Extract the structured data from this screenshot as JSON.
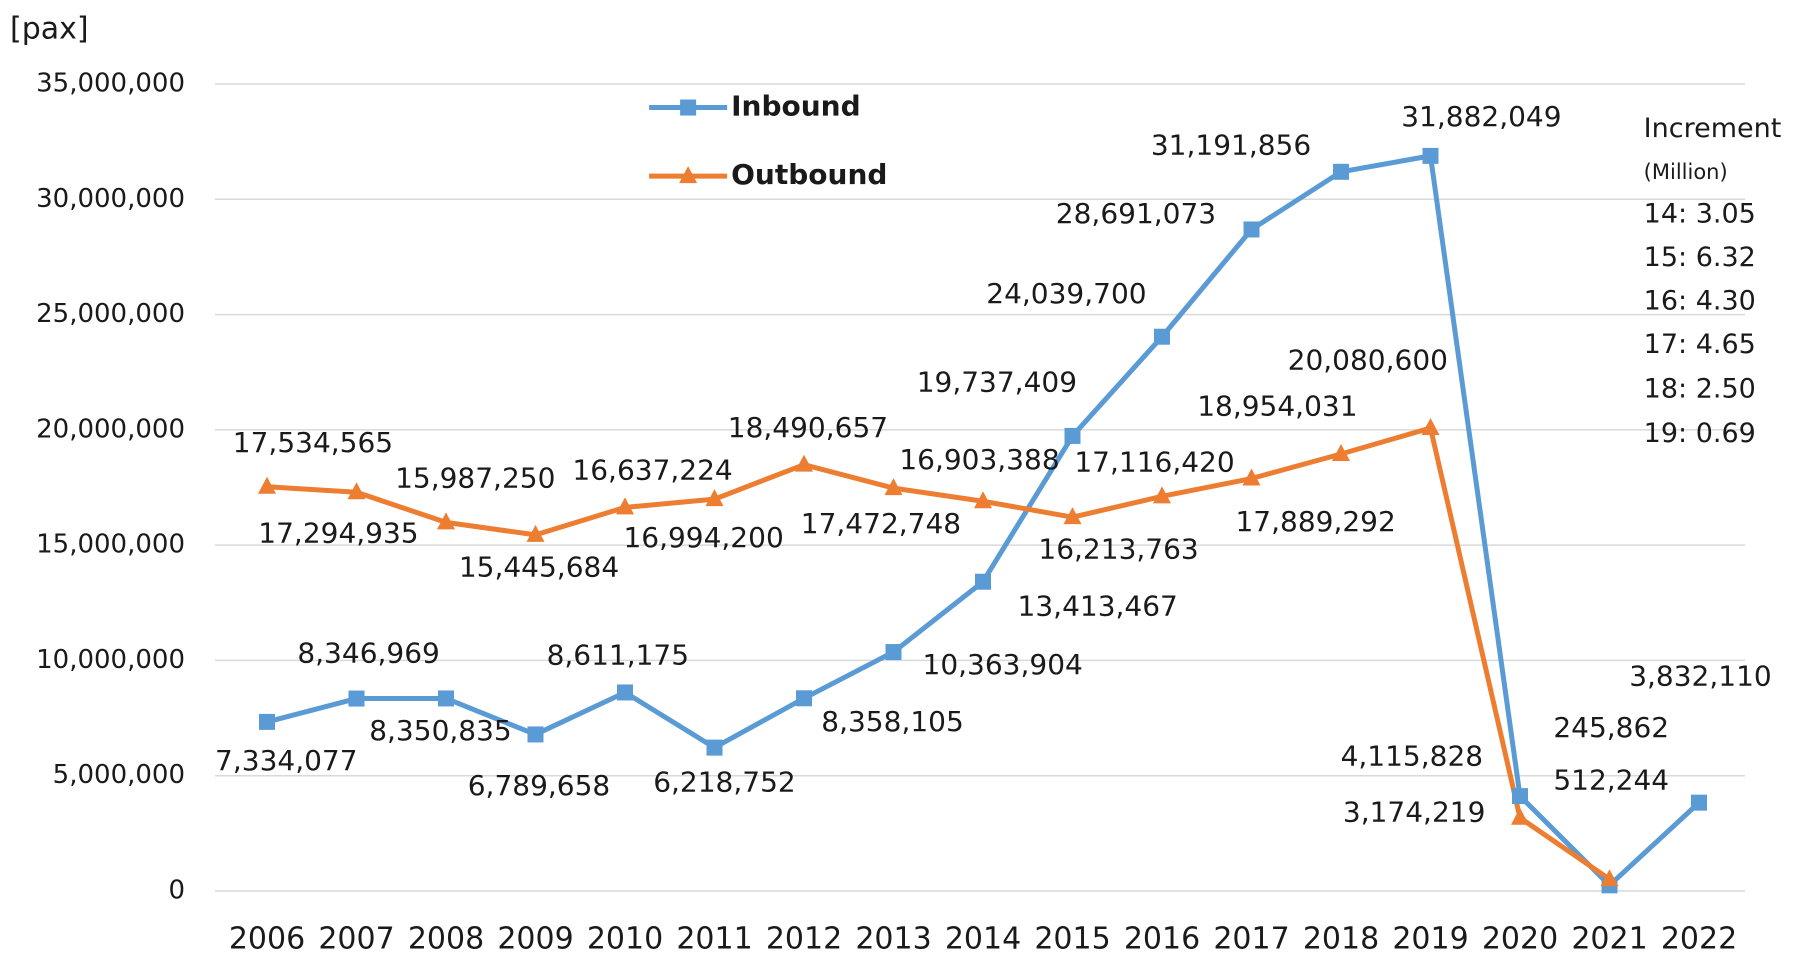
{
  "chart_data": {
    "type": "line",
    "y_label": "[pax]",
    "categories": [
      "2006",
      "2007",
      "2008",
      "2009",
      "2010",
      "2011",
      "2012",
      "2013",
      "2014",
      "2015",
      "2016",
      "2017",
      "2018",
      "2019",
      "2020",
      "2021",
      "2022"
    ],
    "series": [
      {
        "name": "Inbound",
        "color": "#5b9bd5",
        "marker": "square",
        "values": [
          7334077,
          8346969,
          8350835,
          6789658,
          8611175,
          6218752,
          8358105,
          10363904,
          13413467,
          19737409,
          24039700,
          28691073,
          31191856,
          31882049,
          4115828,
          245862,
          3832110
        ],
        "value_labels": [
          "7,334,077",
          "8,346,969",
          "8,350,835",
          "6,789,658",
          "8,611,175",
          "6,218,752",
          "8,358,105",
          "10,363,904",
          "13,413,467",
          "19,737,409",
          "24,039,700",
          "28,691,073",
          "31,191,856",
          "31,882,049",
          "4,115,828",
          "245,862",
          "3,832,110"
        ]
      },
      {
        "name": "Outbound",
        "color": "#ed7d31",
        "marker": "triangle",
        "values": [
          17534565,
          17294935,
          15987250,
          15445684,
          16637224,
          16994200,
          18490657,
          17472748,
          16903388,
          16213763,
          17116420,
          17889292,
          18954031,
          20080600,
          3174219,
          512244,
          null
        ],
        "value_labels": [
          "17,534,565",
          "17,294,935",
          "15,987,250",
          "15,445,684",
          "16,637,224",
          "16,994,200",
          "18,490,657",
          "17,472,748",
          "16,903,388",
          "16,213,763",
          "17,116,420",
          "17,889,292",
          "18,954,031",
          "20,080,600",
          "3,174,219",
          "512,244",
          null
        ]
      }
    ],
    "ylim": [
      0,
      35000000
    ],
    "yticks": [
      0,
      {
        "value": 5000000,
        "label": "5,000,000"
      },
      {
        "value": 10000000,
        "label": "10,000,000"
      },
      {
        "value": 15000000,
        "label": "15,000,000"
      },
      {
        "value": 20000000,
        "label": "20,000,000"
      },
      {
        "value": 25000000,
        "label": "25,000,000"
      },
      {
        "value": 30000000,
        "label": "30,000,000"
      },
      {
        "value": 35000000,
        "label": "35,000,000"
      }
    ],
    "grid": true,
    "annotations": [
      "Increment",
      "(Million)",
      "14: 3.05",
      "15: 6.32",
      "16: 4.30",
      "17: 4.65",
      "18: 2.50",
      "19: 0.69"
    ]
  }
}
